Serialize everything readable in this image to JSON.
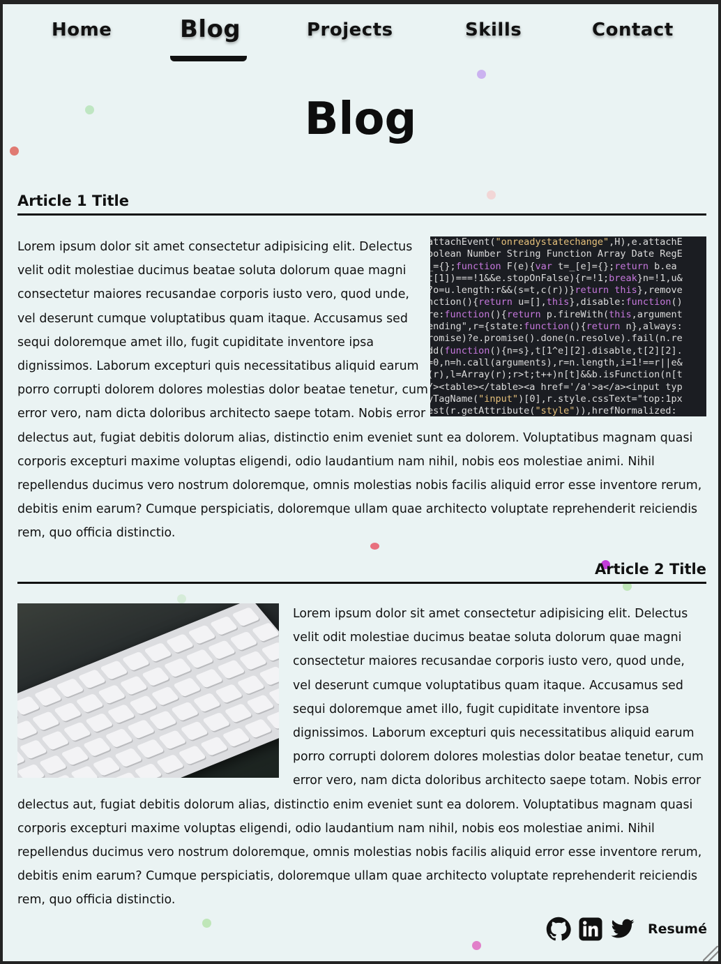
{
  "nav": {
    "items": [
      {
        "label": "Home"
      },
      {
        "label": "Blog"
      },
      {
        "label": "Projects"
      },
      {
        "label": "Skills"
      },
      {
        "label": "Contact"
      }
    ],
    "active": "Blog"
  },
  "page_title": "Blog",
  "articles": [
    {
      "title": "Article 1 Title",
      "image": "code-screenshot",
      "body": "Lorem ipsum dolor sit amet consectetur adipisicing elit. Delectus velit odit molestiae ducimus beatae soluta dolorum quae magni consectetur maiores recusandae corporis iusto vero, quod unde, vel deserunt cumque voluptatibus quam itaque. Accusamus sed sequi doloremque amet illo, fugit cupiditate inventore ipsa dignissimos. Laborum excepturi quis necessitatibus aliquid earum porro corrupti dolorem dolores molestias dolor beatae tenetur, cum error vero, nam dicta doloribus architecto saepe totam. Nobis error delectus aut, fugiat debitis dolorum alias, distinctio enim eveniet sunt ea dolorem. Voluptatibus magnam quasi corporis excepturi maxime voluptas eligendi, odio laudantium nam nihil, nobis eos molestiae animi. Nihil repellendus ducimus vero nostrum doloremque, omnis molestias nobis facilis aliquid error esse inventore rerum, debitis enim earum? Cumque perspiciatis, doloremque ullam quae architecto voluptate reprehenderit reiciendis rem, quo officia distinctio."
    },
    {
      "title": "Article 2 Title",
      "image": "keyboard-photo",
      "body": "Lorem ipsum dolor sit amet consectetur adipisicing elit. Delectus velit odit molestiae ducimus beatae soluta dolorum quae magni consectetur maiores recusandae corporis iusto vero, quod unde, vel deserunt cumque voluptatibus quam itaque. Accusamus sed sequi doloremque amet illo, fugit cupiditate inventore ipsa dignissimos. Laborum excepturi quis necessitatibus aliquid earum porro corrupti dolorem dolores molestias dolor beatae tenetur, cum error vero, nam dicta doloribus architecto saepe totam. Nobis error delectus aut, fugiat debitis dolorum alias, distinctio enim eveniet sunt ea dolorem. Voluptatibus magnam quasi corporis excepturi maxime voluptas eligendi, odio laudantium nam nihil, nobis eos molestiae animi. Nihil repellendus ducimus vero nostrum doloremque, omnis molestias nobis facilis aliquid error esse inventore rerum, debitis enim earum? Cumque perspiciatis, doloremque ullam quae architecto voluptate reprehenderit reiciendis rem, quo officia distinctio."
    }
  ],
  "code_lines": [
    "attachEvent(\"onreadystatechange\",H),e.attachE",
    "oolean Number String Function Array Date RegE",
    "_={};function F(e){var t=_[e]={};return b.ea",
    "t[1])===!1&&e.stopOnFalse){r=!1;break}n=!1,u&",
    "?o=u.length:r&&(s=t,c(r))}return this},remove",
    "nction(){return u=[],this},disable:function()",
    "re:function(){return p.fireWith(this,argument",
    "ending\",r={state:function(){return n},always:",
    "romise)?e.promise().done(n.resolve).fail(n.re",
    "dd(function(){n=s},t[1^e][2].disable,t[2][2].",
    "=0,n=h.call(arguments),r=n.length,i=1!==r||e&",
    "(r),l=Array(r);r>t;t++)n[t]&&b.isFunction(n[t",
    "/><table></table><a href='/a'>a</a><input typ",
    "yTagName(\"input\")[0],r.style.cssText=\"top:1px",
    "est(r.getAttribute(\"style\")),hrefNormalized:"
  ],
  "footer": {
    "icons": [
      "github-icon",
      "linkedin-icon",
      "twitter-icon"
    ],
    "resume_label": "Resumé"
  },
  "colors": {
    "background": "#eaf3f3",
    "text": "#111111",
    "frame": "#232323"
  }
}
